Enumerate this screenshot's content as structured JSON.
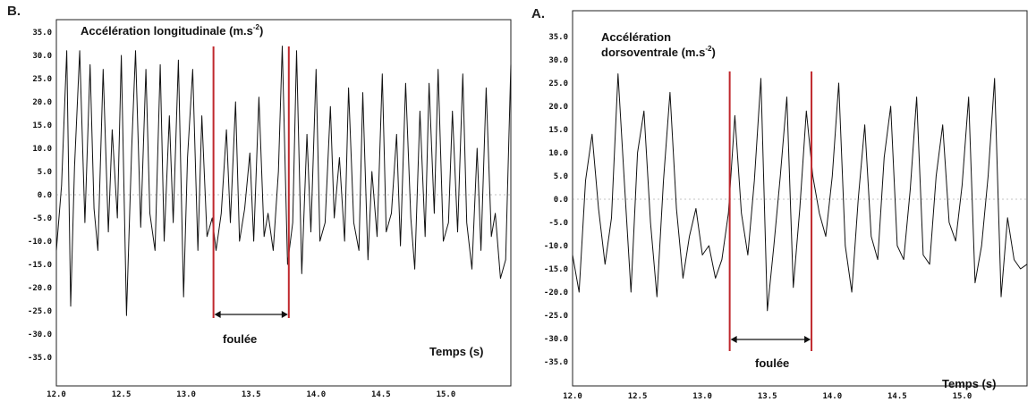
{
  "chart_data": [
    {
      "type": "line",
      "panel_label": "B.",
      "ylabel_main": "Accélération longitudinale (m.s",
      "ylabel_sup": "-2",
      "ylabel_end": ")",
      "xlabel": "Temps (s)",
      "stride_label": "foulée",
      "xlim": [
        12.0,
        15.5
      ],
      "ylim": [
        -40,
        40
      ],
      "x_ticks": [
        "12.0",
        "12.5",
        "13.0",
        "13.5",
        "14.0",
        "14.5",
        "15.0"
      ],
      "y_ticks": [
        "35.0",
        "30.0",
        "25.0",
        "20.0",
        "15.0",
        "10.0",
        "5.0",
        "0.0",
        "-5.0",
        "-10.0",
        "-15.0",
        "-20.0",
        "-25.0",
        "-30.0",
        "-35.0"
      ],
      "stride_start": 13.21,
      "stride_end": 13.79,
      "marker_color": "#c0282d",
      "series": [
        {
          "x": [
            12.0,
            12.04,
            12.08,
            12.11,
            12.14,
            12.18,
            12.22,
            12.26,
            12.29,
            12.32,
            12.36,
            12.4,
            12.43,
            12.47,
            12.5,
            12.54,
            12.58,
            12.61,
            12.65,
            12.69,
            12.72,
            12.76,
            12.8,
            12.83,
            12.87,
            12.9,
            12.94,
            12.98,
            13.01,
            13.05,
            13.09,
            13.12,
            13.16,
            13.2,
            13.23,
            13.27,
            13.31,
            13.34,
            13.38,
            13.41,
            13.45,
            13.49,
            13.52,
            13.56,
            13.6,
            13.63,
            13.67,
            13.71,
            13.74,
            13.78,
            13.82,
            13.85,
            13.89,
            13.93,
            13.96,
            14.0,
            14.03,
            14.07,
            14.11,
            14.14,
            14.18,
            14.22,
            14.25,
            14.29,
            14.33,
            14.36,
            14.4,
            14.43,
            14.47,
            14.51,
            14.54,
            14.58,
            14.62,
            14.65,
            14.69,
            14.73,
            14.76,
            14.8,
            14.84,
            14.87,
            14.91,
            14.94,
            14.98,
            15.02,
            15.05,
            15.09,
            15.13,
            15.16,
            15.2,
            15.24,
            15.27,
            15.31,
            15.35,
            15.38,
            15.42,
            15.46,
            15.5
          ],
          "y": [
            -12,
            2,
            31,
            -24,
            6,
            31,
            -6,
            28,
            -3,
            -12,
            27,
            -8,
            14,
            -5,
            30,
            -26,
            10,
            31,
            -7,
            27,
            -4,
            -12,
            28,
            -10,
            17,
            -6,
            29,
            -22,
            8,
            27,
            -12,
            17,
            -9,
            -5,
            -12,
            -4,
            14,
            -6,
            20,
            -10,
            -3,
            9,
            -10,
            21,
            -9,
            -4,
            -12,
            5,
            32,
            -15,
            -6,
            31,
            -17,
            13,
            -8,
            27,
            -10,
            -6,
            19,
            -5,
            8,
            -10,
            23,
            -6,
            -12,
            22,
            -14,
            5,
            -9,
            26,
            -8,
            -4,
            13,
            -11,
            24,
            -5,
            -16,
            18,
            -9,
            24,
            -4,
            27,
            -10,
            -6,
            18,
            -8,
            26,
            -6,
            -16,
            10,
            -12,
            23,
            -9,
            -4,
            -18,
            -14,
            28
          ]
        }
      ]
    },
    {
      "type": "line",
      "panel_label": "A.",
      "ylabel_main": "Accélération",
      "ylabel_line2": "dorsoventrale (m.s",
      "ylabel_sup": "-2",
      "ylabel_end": ")",
      "xlabel": "Temps (s)",
      "stride_label": "foulée",
      "xlim": [
        12.0,
        15.5
      ],
      "ylim": [
        -40,
        40
      ],
      "x_ticks": [
        "12.0",
        "12.5",
        "13.0",
        "13.5",
        "14.0",
        "14.5",
        "15.0"
      ],
      "y_ticks": [
        "35.0",
        "30.0",
        "25.0",
        "20.0",
        "15.0",
        "10.0",
        "5.0",
        "0.0",
        "-5.0",
        "-10.0",
        "-15.0",
        "-20.0",
        "-25.0",
        "-30.0",
        "-35.0"
      ],
      "stride_start": 13.21,
      "stride_end": 13.84,
      "marker_color": "#c0282d",
      "series": [
        {
          "x": [
            12.0,
            12.05,
            12.1,
            12.15,
            12.2,
            12.25,
            12.3,
            12.35,
            12.4,
            12.45,
            12.5,
            12.55,
            12.6,
            12.65,
            12.7,
            12.75,
            12.8,
            12.85,
            12.9,
            12.95,
            13.0,
            13.05,
            13.1,
            13.15,
            13.2,
            13.25,
            13.3,
            13.35,
            13.4,
            13.45,
            13.5,
            13.55,
            13.6,
            13.65,
            13.7,
            13.75,
            13.8,
            13.85,
            13.9,
            13.95,
            14.0,
            14.05,
            14.1,
            14.15,
            14.2,
            14.25,
            14.3,
            14.35,
            14.4,
            14.45,
            14.5,
            14.55,
            14.6,
            14.65,
            14.7,
            14.75,
            14.8,
            14.85,
            14.9,
            14.95,
            15.0,
            15.05,
            15.1,
            15.15,
            15.2,
            15.25,
            15.3,
            15.35,
            15.4,
            15.45,
            15.5
          ],
          "y": [
            -12,
            -20,
            4,
            14,
            -2,
            -14,
            -4,
            27,
            3,
            -20,
            10,
            19,
            -5,
            -21,
            4,
            23,
            -2,
            -17,
            -8,
            -2,
            -12,
            -10,
            -17,
            -13,
            -3,
            18,
            -3,
            -12,
            4,
            26,
            -24,
            -10,
            5,
            22,
            -19,
            -2,
            19,
            5,
            -3,
            -8,
            5,
            25,
            -10,
            -20,
            0,
            16,
            -8,
            -13,
            9,
            20,
            -10,
            -13,
            2,
            22,
            -12,
            -14,
            5,
            16,
            -5,
            -9,
            3,
            22,
            -18,
            -10,
            5,
            26,
            -21,
            -4,
            -13,
            -15,
            -14
          ]
        }
      ]
    }
  ]
}
